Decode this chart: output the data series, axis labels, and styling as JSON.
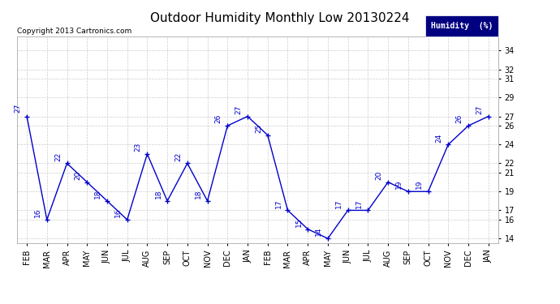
{
  "title": "Outdoor Humidity Monthly Low 20130224",
  "copyright": "Copyright 2013 Cartronics.com",
  "legend_label": "Humidity  (%)",
  "x_labels": [
    "FEB",
    "MAR",
    "APR",
    "MAY",
    "JUN",
    "JUL",
    "AUG",
    "SEP",
    "OCT",
    "NOV",
    "DEC",
    "JAN",
    "FEB",
    "MAR",
    "APR",
    "MAY",
    "JUN",
    "JUL",
    "AUG",
    "SEP",
    "OCT",
    "NOV",
    "DEC",
    "JAN"
  ],
  "y_values": [
    27,
    16,
    22,
    20,
    18,
    16,
    23,
    18,
    22,
    18,
    26,
    27,
    25,
    17,
    15,
    14,
    17,
    17,
    20,
    19,
    19,
    24,
    26,
    27
  ],
  "point_labels": [
    "27",
    "16",
    "22",
    "20",
    "18",
    "16",
    "23",
    "18",
    "22",
    "18",
    "26",
    "27",
    "25",
    "17",
    "15",
    "14",
    "17",
    "17",
    "20",
    "19",
    "19",
    "24",
    "26",
    "27"
  ],
  "line_color": "#0000CC",
  "marker_color": "#0000CC",
  "bg_color": "#ffffff",
  "grid_color": "#cccccc",
  "ylim": [
    13.5,
    35.5
  ],
  "yticks": [
    14,
    16,
    17,
    19,
    21,
    22,
    24,
    26,
    27,
    29,
    31,
    32,
    34
  ],
  "title_fontsize": 11,
  "label_fontsize": 6.5,
  "tick_fontsize": 7,
  "copyright_fontsize": 6.5,
  "legend_bg": "#000080",
  "legend_fg": "#ffffff"
}
